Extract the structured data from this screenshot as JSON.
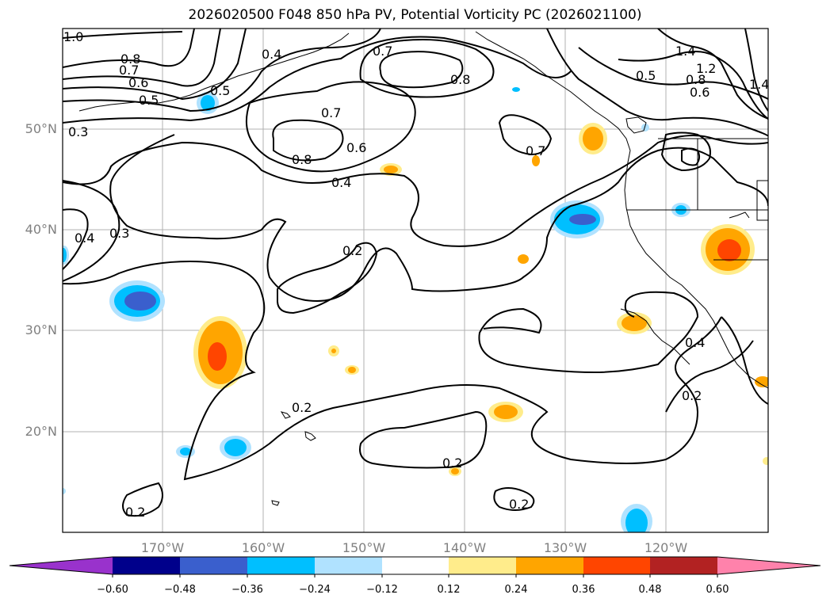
{
  "title": "2026020500 F048 850 hPa PV, Potential Vorticity PC (2026021100)",
  "lat_labels": [
    "50°N",
    "40°N",
    "30°N",
    "20°N"
  ],
  "lon_labels": [
    "170°W",
    "160°W",
    "150°W",
    "140°W",
    "130°W",
    "120°W"
  ],
  "colorbar": {
    "ticks": [
      "−0.60",
      "−0.48",
      "−0.36",
      "−0.24",
      "−0.12",
      "0.12",
      "0.24",
      "0.36",
      "0.48",
      "0.60"
    ],
    "colors": [
      "#9932cc",
      "#00008b",
      "#3a5fcd",
      "#00bfff",
      "#b0e2ff",
      "#ffffff",
      "#ffec8b",
      "#ffa500",
      "#ff4500",
      "#b22222",
      "#ff82ab"
    ]
  },
  "contour_labels": [
    "1.0",
    "0.8",
    "0.7",
    "0.6",
    "0.5",
    "0.4",
    "0.5",
    "0.3",
    "0.7",
    "0.8",
    "0.7",
    "0.8",
    "0.6",
    "0.4",
    "0.7",
    "0.5",
    "1.4",
    "1.2",
    "0.8",
    "0.6",
    "1.4",
    "0.4",
    "0.3",
    "0.2",
    "0.2",
    "0.2",
    "0.2",
    "0.2",
    "0.4",
    "0.2"
  ]
}
